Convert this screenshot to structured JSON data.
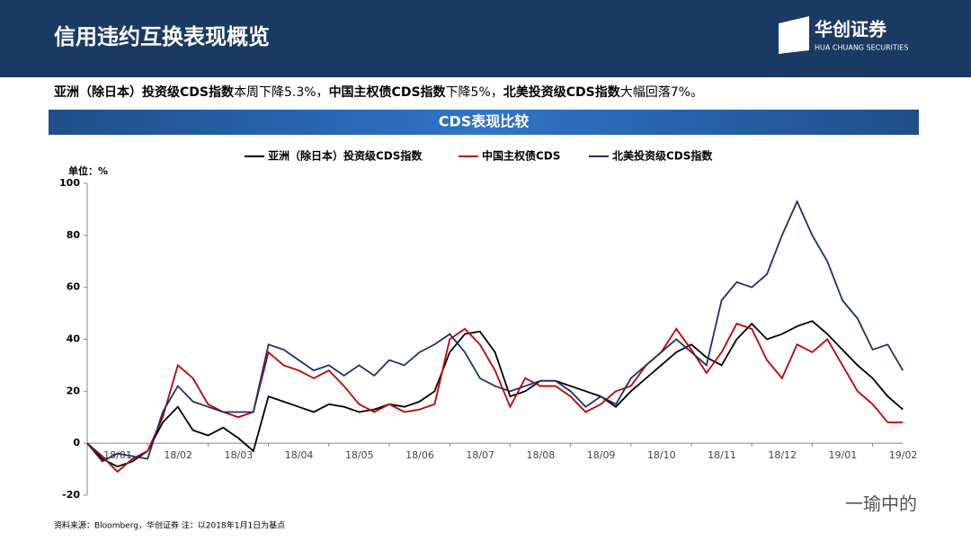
{
  "header": {
    "title": "信用违约互换表现概览",
    "logo_cn": "华创证券",
    "logo_en": "HUA CHUANG SECURITIES"
  },
  "summary": [
    "亚洲（除日本）投资级CDS指数",
    "本周下降5.3%，",
    "中国主权债CDS指数",
    "下降5%，",
    "北美投资级CDS指数",
    "大幅回落7%。"
  ],
  "section_title": "CDS表现比较",
  "chart_data": {
    "type": "line",
    "ylabel": "单位：%",
    "categories": [
      "18/01",
      null,
      null,
      null,
      "18/02",
      null,
      null,
      null,
      "18/03",
      null,
      null,
      null,
      "18/04",
      null,
      null,
      null,
      "18/05",
      null,
      null,
      null,
      "18/06",
      null,
      null,
      null,
      "18/07",
      null,
      null,
      null,
      "18/08",
      null,
      null,
      null,
      "18/09",
      null,
      null,
      null,
      "18/10",
      null,
      null,
      null,
      "18/11",
      null,
      null,
      null,
      "18/12",
      null,
      null,
      null,
      "19/01",
      null,
      null,
      null,
      "19/02",
      null,
      null
    ],
    "series": [
      {
        "name": "亚洲（除日本）投资级CDS指数",
        "color": "#000000",
        "values": [
          0,
          -6,
          -9,
          -7,
          -3,
          8,
          14,
          5,
          3,
          6,
          2,
          -3,
          18,
          16,
          14,
          12,
          15,
          14,
          12,
          13,
          15,
          14,
          16,
          20,
          35,
          42,
          43,
          35,
          18,
          20,
          24,
          24,
          22,
          20,
          18,
          14,
          20,
          25,
          30,
          35,
          38,
          33,
          30,
          40,
          46,
          40,
          42,
          45,
          47,
          42,
          36,
          30,
          25,
          18,
          13
        ]
      },
      {
        "name": "中国主权债CDS",
        "color": "#c00000",
        "values": [
          0,
          -5,
          -11,
          -6,
          -3,
          10,
          30,
          25,
          15,
          12,
          10,
          12,
          35,
          30,
          28,
          25,
          28,
          22,
          15,
          12,
          15,
          12,
          13,
          15,
          40,
          44,
          38,
          28,
          14,
          25,
          22,
          22,
          18,
          12,
          15,
          20,
          22,
          30,
          35,
          44,
          36,
          27,
          35,
          46,
          44,
          32,
          25,
          38,
          35,
          40,
          30,
          20,
          15,
          8,
          8
        ]
      },
      {
        "name": "北美投资级CDS指数",
        "color": "#1f3068",
        "values": [
          0,
          -7,
          -4,
          -5,
          -6,
          12,
          22,
          16,
          14,
          12,
          12,
          12,
          38,
          36,
          32,
          28,
          30,
          26,
          30,
          26,
          32,
          30,
          35,
          38,
          42,
          35,
          25,
          22,
          20,
          22,
          24,
          24,
          20,
          14,
          18,
          15,
          25,
          30,
          35,
          40,
          35,
          30,
          55,
          62,
          60,
          65,
          80,
          93,
          80,
          70,
          55,
          48,
          36,
          38,
          28
        ]
      }
    ],
    "ylim": [
      -20,
      100
    ],
    "yticks": [
      -20,
      0,
      20,
      40,
      60,
      80,
      100
    ]
  },
  "source": "资料来源：Bloomberg，华创证券   注：以2018年1月1日为基点",
  "watermark": "一瑜中的"
}
